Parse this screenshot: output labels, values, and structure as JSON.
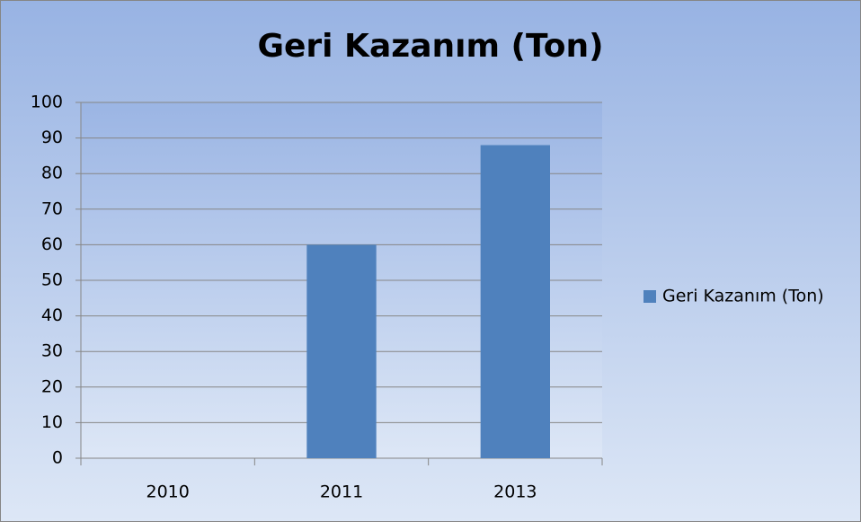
{
  "chart_data": {
    "type": "bar",
    "title": "Geri Kazanım (Ton)",
    "categories": [
      "2010",
      "2011",
      "2013"
    ],
    "series": [
      {
        "name": "Geri Kazanım (Ton)",
        "color": "#4f81bd",
        "values": [
          0,
          60,
          88
        ]
      }
    ],
    "ylim": [
      0,
      100
    ],
    "yticks": [
      0,
      10,
      20,
      30,
      40,
      50,
      60,
      70,
      80,
      90,
      100
    ],
    "grid": true,
    "legend": "right"
  }
}
